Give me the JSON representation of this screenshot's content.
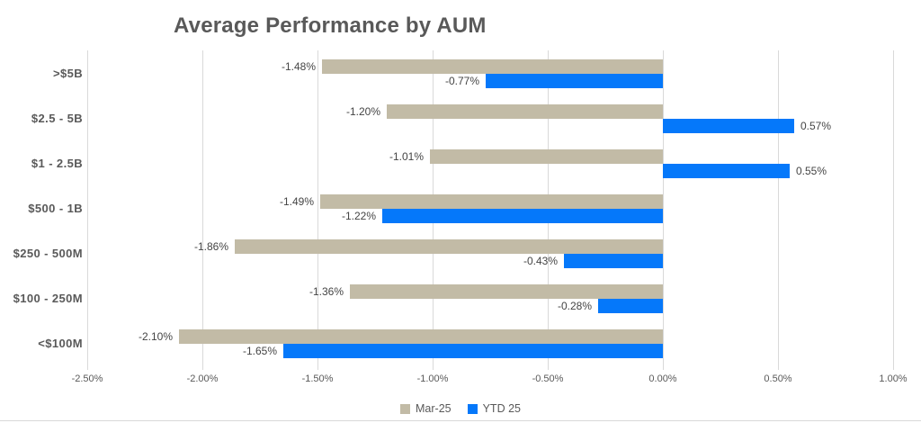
{
  "title": "Average Performance by AUM",
  "colors": {
    "series_mar25": "#C2BBA6",
    "series_ytd25": "#0578FA",
    "gridline": "#D9D9D9",
    "title_text": "#595959",
    "axis_text": "#595959",
    "data_label_text": "#444444",
    "background": "#FFFFFF"
  },
  "chart_data": {
    "type": "bar",
    "orientation": "horizontal",
    "title": "Average Performance by AUM",
    "xlabel": "",
    "ylabel": "",
    "xlim": [
      -2.5,
      1.0
    ],
    "grid": true,
    "legend_position": "bottom",
    "unit": "%",
    "categories": [
      ">$5B",
      "$2.5 - 5B",
      "$1 - 2.5B",
      "$500 - 1B",
      "$250 - 500M",
      "$100 - 250M",
      "<$100M"
    ],
    "series": [
      {
        "name": "Mar-25",
        "color": "#C2BBA6",
        "values": [
          -1.48,
          -1.2,
          -1.01,
          -1.49,
          -1.86,
          -1.36,
          -2.1
        ],
        "labels": [
          "-1.48%",
          "-1.20%",
          "-1.01%",
          "-1.49%",
          "-1.86%",
          "-1.36%",
          "-2.10%"
        ]
      },
      {
        "name": "YTD 25",
        "color": "#0578FA",
        "values": [
          -0.77,
          0.57,
          0.55,
          -1.22,
          -0.43,
          -0.28,
          -1.65
        ],
        "labels": [
          "-0.77%",
          "0.57%",
          "0.55%",
          "-1.22%",
          "-0.43%",
          "-0.28%",
          "-1.65%"
        ]
      }
    ],
    "x_ticks": [
      {
        "value": -2.5,
        "label": "-2.50%"
      },
      {
        "value": -2.0,
        "label": "-2.00%"
      },
      {
        "value": -1.5,
        "label": "-1.50%"
      },
      {
        "value": -1.0,
        "label": "-1.00%"
      },
      {
        "value": -0.5,
        "label": "-0.50%"
      },
      {
        "value": 0.0,
        "label": "0.00%"
      },
      {
        "value": 0.5,
        "label": "0.50%"
      },
      {
        "value": 1.0,
        "label": "1.00%"
      }
    ]
  }
}
